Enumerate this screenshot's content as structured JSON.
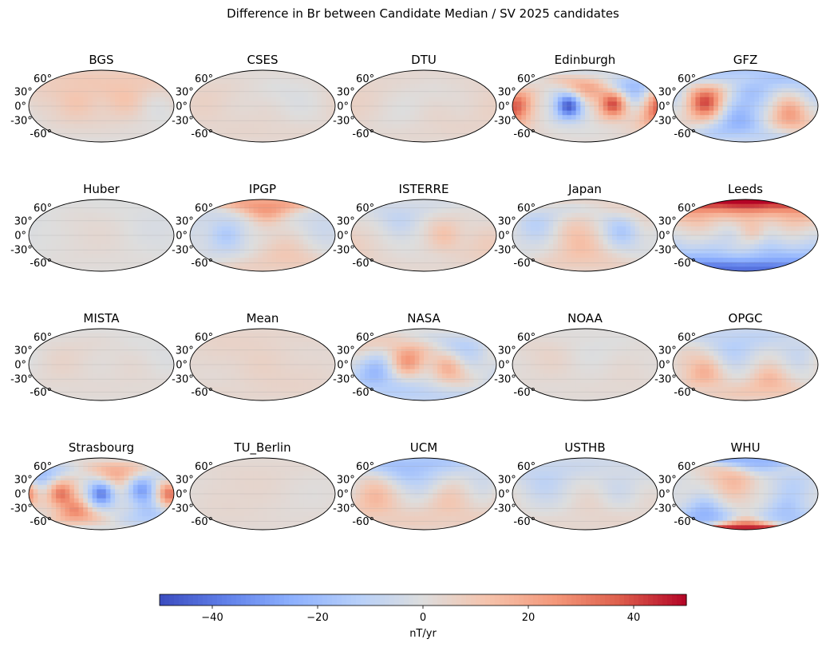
{
  "chart_data": {
    "type": "heatmap",
    "title": "Difference in Br between Candidate Median / SV 2025 candidates",
    "projection": "mollweide",
    "lat_ticks": [
      "60°",
      "30°",
      "0°",
      "-30°",
      "-60°"
    ],
    "colorbar": {
      "label": "nT/yr",
      "range": [
        -50,
        50
      ],
      "ticks": [
        -40,
        -20,
        0,
        20,
        40
      ],
      "tick_labels": [
        "−40",
        "−20",
        "0",
        "20",
        "40"
      ],
      "colormap": "coolwarm",
      "colors": {
        "min": "#3b4cc0",
        "low": "#8db0fe",
        "mid": "#dddddd",
        "high": "#f4987a",
        "max": "#b40426"
      }
    },
    "panels": [
      {
        "name": "BGS",
        "max_abs": 12,
        "blobs": [
          [
            60,
            20,
            10,
            1.0,
            40
          ],
          [
            -60,
            10,
            10,
            0.9,
            40
          ],
          [
            140,
            0,
            -6,
            0.6,
            35
          ],
          [
            -170,
            30,
            8,
            0.6,
            45
          ]
        ]
      },
      {
        "name": "CSES",
        "max_abs": 6,
        "blobs": [
          [
            -150,
            10,
            5,
            1.0,
            60
          ],
          [
            90,
            20,
            -3,
            0.8,
            50
          ],
          [
            20,
            -30,
            4,
            0.8,
            45
          ]
        ]
      },
      {
        "name": "DTU",
        "max_abs": 6,
        "blobs": [
          [
            -150,
            20,
            4,
            1.0,
            60
          ],
          [
            30,
            -30,
            4,
            0.8,
            40
          ],
          [
            150,
            -20,
            3,
            0.7,
            40
          ],
          [
            -60,
            -20,
            -2,
            0.7,
            40
          ]
        ]
      },
      {
        "name": "Edinburgh",
        "max_abs": 45,
        "blobs": [
          [
            -40,
            0,
            -45,
            1.0,
            22
          ],
          [
            70,
            5,
            40,
            1.0,
            24
          ],
          [
            -170,
            5,
            35,
            0.9,
            28
          ],
          [
            0,
            45,
            25,
            0.8,
            25
          ],
          [
            120,
            45,
            -30,
            0.8,
            28
          ],
          [
            170,
            -30,
            20,
            0.7,
            25
          ]
        ]
      },
      {
        "name": "GFZ",
        "max_abs": 40,
        "blobs": [
          [
            -100,
            10,
            40,
            1.0,
            30
          ],
          [
            110,
            -20,
            25,
            0.9,
            30
          ],
          [
            20,
            40,
            -20,
            0.8,
            35
          ],
          [
            -20,
            -40,
            -25,
            0.9,
            35
          ],
          [
            180,
            50,
            -20,
            0.7,
            35
          ]
        ]
      },
      {
        "name": "Huber",
        "max_abs": 3,
        "blobs": [
          [
            0,
            0,
            2,
            1.0,
            60
          ],
          [
            120,
            30,
            -2,
            0.8,
            50
          ]
        ]
      },
      {
        "name": "IPGP",
        "max_abs": 25,
        "blobs": [
          [
            10,
            70,
            25,
            1.0,
            25
          ],
          [
            -90,
            0,
            -15,
            0.9,
            30
          ],
          [
            60,
            -50,
            12,
            0.8,
            40
          ],
          [
            150,
            20,
            -8,
            0.7,
            40
          ]
        ]
      },
      {
        "name": "ISTERRE",
        "max_abs": 12,
        "blobs": [
          [
            50,
            0,
            12,
            1.0,
            30
          ],
          [
            -60,
            40,
            -10,
            0.9,
            30
          ],
          [
            150,
            -20,
            8,
            0.8,
            35
          ],
          [
            -150,
            -30,
            6,
            0.7,
            40
          ]
        ]
      },
      {
        "name": "Japan",
        "max_abs": 15,
        "blobs": [
          [
            90,
            10,
            -12,
            1.0,
            30
          ],
          [
            -120,
            30,
            -10,
            0.9,
            35
          ],
          [
            0,
            -40,
            10,
            0.8,
            40
          ],
          [
            150,
            60,
            10,
            0.8,
            30
          ],
          [
            -30,
            10,
            8,
            0.7,
            35
          ]
        ]
      },
      {
        "name": "Leeds",
        "max_abs": 50,
        "blobs": [
          [
            0,
            75,
            55,
            1.0,
            30
          ],
          [
            -120,
            65,
            50,
            1.0,
            35
          ],
          [
            120,
            65,
            50,
            1.0,
            35
          ],
          [
            60,
            -60,
            -50,
            1.0,
            35
          ],
          [
            -80,
            -70,
            -50,
            1.0,
            35
          ],
          [
            170,
            -55,
            -45,
            0.9,
            35
          ],
          [
            20,
            10,
            30,
            0.8,
            20
          ],
          [
            -40,
            0,
            -15,
            0.7,
            20
          ]
        ]
      },
      {
        "name": "MISTA",
        "max_abs": 5,
        "blobs": [
          [
            -100,
            10,
            4,
            1.0,
            50
          ],
          [
            80,
            -10,
            3,
            0.8,
            45
          ],
          [
            170,
            40,
            -3,
            0.7,
            45
          ]
        ]
      },
      {
        "name": "Mean",
        "max_abs": 6,
        "blobs": [
          [
            0,
            0,
            5,
            1.0,
            50
          ],
          [
            -120,
            40,
            4,
            0.8,
            50
          ],
          [
            120,
            -30,
            4,
            0.8,
            50
          ]
        ]
      },
      {
        "name": "NASA",
        "max_abs": 25,
        "blobs": [
          [
            -40,
            10,
            22,
            1.0,
            30
          ],
          [
            60,
            -10,
            20,
            0.9,
            30
          ],
          [
            -120,
            -20,
            -20,
            0.9,
            35
          ],
          [
            100,
            40,
            -15,
            0.8,
            35
          ],
          [
            -160,
            50,
            12,
            0.7,
            30
          ],
          [
            10,
            -50,
            -12,
            0.7,
            35
          ]
        ]
      },
      {
        "name": "NOAA",
        "max_abs": 5,
        "blobs": [
          [
            -80,
            20,
            4,
            1.0,
            50
          ],
          [
            100,
            -20,
            3,
            0.8,
            45
          ],
          [
            0,
            50,
            -3,
            0.7,
            40
          ]
        ]
      },
      {
        "name": "OPGC",
        "max_abs": 18,
        "blobs": [
          [
            -100,
            -20,
            15,
            1.0,
            30
          ],
          [
            60,
            -40,
            15,
            0.9,
            30
          ],
          [
            -30,
            40,
            -12,
            0.9,
            35
          ],
          [
            140,
            30,
            -10,
            0.8,
            35
          ],
          [
            -170,
            20,
            8,
            0.7,
            35
          ]
        ]
      },
      {
        "name": "Strasbourg",
        "max_abs": 35,
        "blobs": [
          [
            0,
            0,
            -35,
            1.0,
            22
          ],
          [
            -100,
            0,
            30,
            1.0,
            24
          ],
          [
            100,
            10,
            -30,
            0.9,
            24
          ],
          [
            170,
            0,
            35,
            0.9,
            22
          ],
          [
            -60,
            -45,
            30,
            0.8,
            22
          ],
          [
            40,
            50,
            25,
            0.8,
            25
          ],
          [
            -150,
            45,
            -25,
            0.8,
            25
          ],
          [
            120,
            -50,
            -20,
            0.7,
            25
          ]
        ]
      },
      {
        "name": "TU_Berlin",
        "max_abs": 4,
        "blobs": [
          [
            0,
            20,
            3,
            1.0,
            60
          ],
          [
            -120,
            -20,
            3,
            0.8,
            55
          ]
        ]
      },
      {
        "name": "UCM",
        "max_abs": 18,
        "blobs": [
          [
            -120,
            -10,
            15,
            1.0,
            40
          ],
          [
            60,
            -20,
            12,
            0.9,
            40
          ],
          [
            0,
            40,
            -12,
            0.9,
            35
          ],
          [
            -60,
            60,
            -15,
            0.8,
            30
          ],
          [
            150,
            40,
            -10,
            0.7,
            35
          ]
        ]
      },
      {
        "name": "USTHB",
        "max_abs": 10,
        "blobs": [
          [
            -100,
            30,
            -8,
            1.0,
            40
          ],
          [
            80,
            10,
            -6,
            0.9,
            40
          ],
          [
            20,
            -30,
            6,
            0.8,
            40
          ],
          [
            160,
            -30,
            5,
            0.7,
            40
          ]
        ]
      },
      {
        "name": "WHU",
        "max_abs": 45,
        "blobs": [
          [
            0,
            -85,
            50,
            1.0,
            15
          ],
          [
            -100,
            -50,
            -20,
            0.9,
            30
          ],
          [
            100,
            -50,
            -15,
            0.8,
            30
          ],
          [
            -30,
            30,
            15,
            0.8,
            35
          ],
          [
            120,
            20,
            -12,
            0.7,
            35
          ],
          [
            30,
            80,
            -25,
            0.8,
            20
          ]
        ]
      }
    ]
  }
}
